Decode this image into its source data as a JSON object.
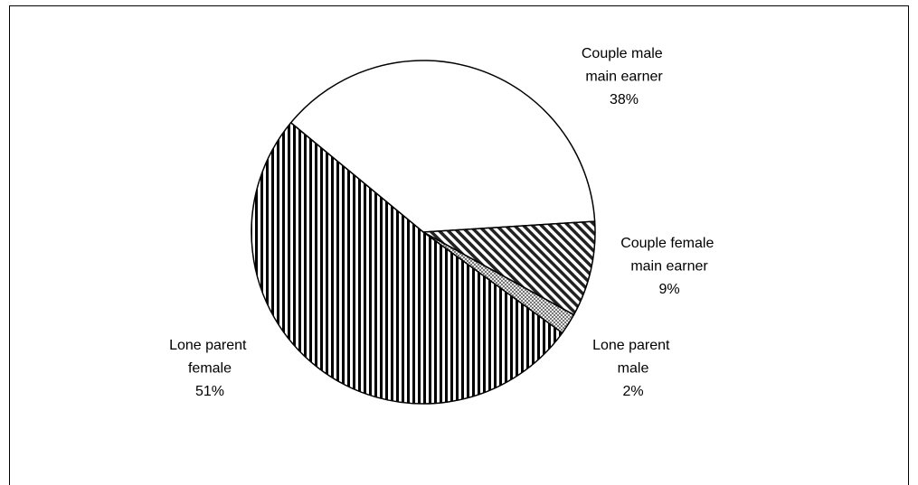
{
  "chart_data": {
    "type": "pie",
    "categories": [
      "Couple male main earner",
      "Couple female main earner",
      "Lone parent male",
      "Lone parent female"
    ],
    "values": [
      38,
      9,
      2,
      51
    ],
    "value_labels": [
      "38%",
      "9%",
      "2%",
      "51%"
    ],
    "patterns": [
      "none",
      "diagonal",
      "crosshatch",
      "vertical"
    ]
  }
}
